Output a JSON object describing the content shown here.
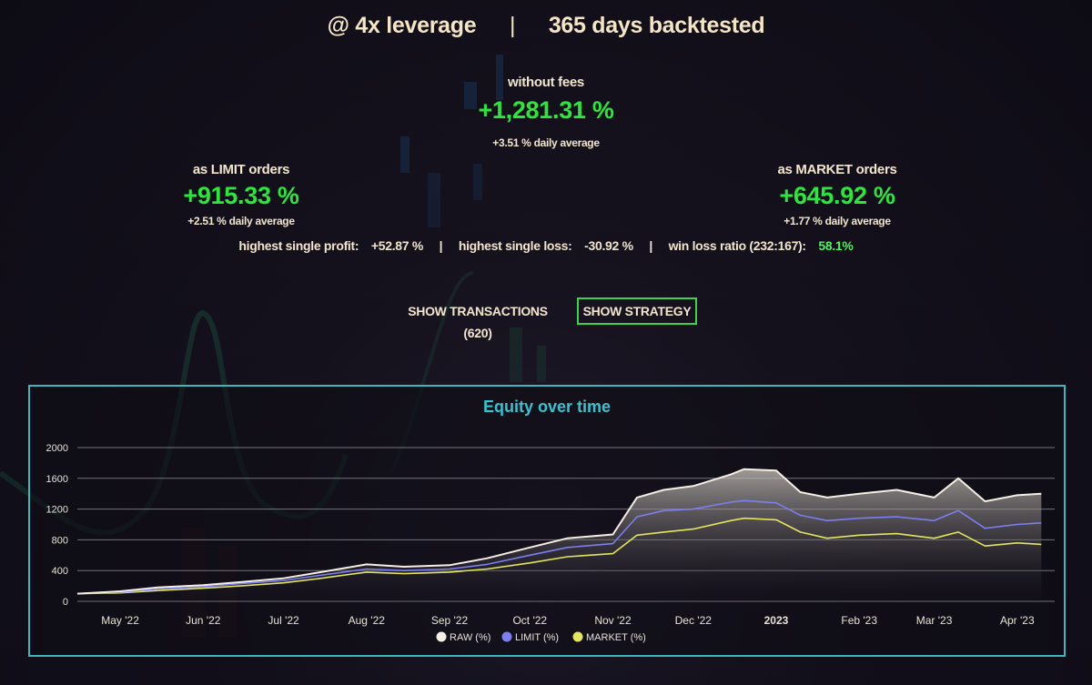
{
  "header": {
    "leverage": "@ 4x leverage",
    "separator": "|",
    "backtest": "365 days backtested"
  },
  "summary": {
    "no_fees": {
      "label": "without fees",
      "value": "+1,281.31 %",
      "daily": "+3.51 % daily average"
    },
    "limit": {
      "label": "as LIMIT orders",
      "value": "+915.33 %",
      "daily": "+2.51 % daily average"
    },
    "market": {
      "label": "as MARKET orders",
      "value": "+645.92 %",
      "daily": "+1.77 % daily average"
    }
  },
  "stats": {
    "profit_label": "highest single profit:",
    "profit_value": "+52.87 %",
    "loss_label": "highest single loss:",
    "loss_value": "-30.92 %",
    "winloss_label": "win loss ratio (232:167):",
    "winloss_value": "58.1%",
    "separator": "|"
  },
  "buttons": {
    "transactions": "SHOW TRANSACTIONS (620)",
    "strategy": "SHOW STRATEGY"
  },
  "colors": {
    "positive": "#2ae83a",
    "accent_border": "#3bb7bd",
    "title": "#36c3d0",
    "raw": "#f5eee4",
    "limit": "#7b7ff0",
    "market": "#e3e65a"
  },
  "chart_data": {
    "type": "line",
    "title": "Equity over time",
    "xlabel": "",
    "ylabel": "",
    "ylim": [
      0,
      2000
    ],
    "yticks": [
      0,
      400,
      800,
      1200,
      1600,
      2000
    ],
    "x_ticks": [
      "May '22",
      "Jun '22",
      "Jul '22",
      "Aug '22",
      "Sep '22",
      "Oct '22",
      "Nov '22",
      "Dec '22",
      "2023",
      "Feb '23",
      "Mar '23",
      "Apr '23"
    ],
    "x": [
      "2022-04-15",
      "2022-05-01",
      "2022-05-15",
      "2022-06-01",
      "2022-06-15",
      "2022-07-01",
      "2022-07-15",
      "2022-08-01",
      "2022-08-15",
      "2022-09-01",
      "2022-09-15",
      "2022-10-01",
      "2022-10-15",
      "2022-11-01",
      "2022-11-10",
      "2022-11-20",
      "2022-12-01",
      "2022-12-15",
      "2022-12-20",
      "2023-01-01",
      "2023-01-10",
      "2023-01-20",
      "2023-02-01",
      "2023-02-15",
      "2023-03-01",
      "2023-03-10",
      "2023-03-20",
      "2023-04-01",
      "2023-04-10"
    ],
    "series": [
      {
        "name": "RAW (%)",
        "values": [
          100,
          130,
          180,
          210,
          250,
          300,
          380,
          480,
          450,
          470,
          560,
          700,
          820,
          870,
          1350,
          1450,
          1500,
          1650,
          1720,
          1700,
          1420,
          1350,
          1400,
          1450,
          1350,
          1600,
          1300,
          1380,
          1400
        ]
      },
      {
        "name": "LIMIT (%)",
        "values": [
          100,
          120,
          160,
          190,
          230,
          270,
          340,
          420,
          400,
          420,
          480,
          600,
          700,
          750,
          1100,
          1180,
          1200,
          1290,
          1310,
          1280,
          1120,
          1050,
          1080,
          1100,
          1050,
          1180,
          950,
          1000,
          1020
        ]
      },
      {
        "name": "MARKET (%)",
        "values": [
          100,
          110,
          140,
          170,
          200,
          240,
          300,
          380,
          360,
          380,
          420,
          500,
          580,
          620,
          860,
          900,
          940,
          1050,
          1080,
          1060,
          900,
          820,
          860,
          880,
          820,
          900,
          720,
          760,
          740
        ]
      }
    ],
    "legend_position": "bottom",
    "grid": true
  }
}
